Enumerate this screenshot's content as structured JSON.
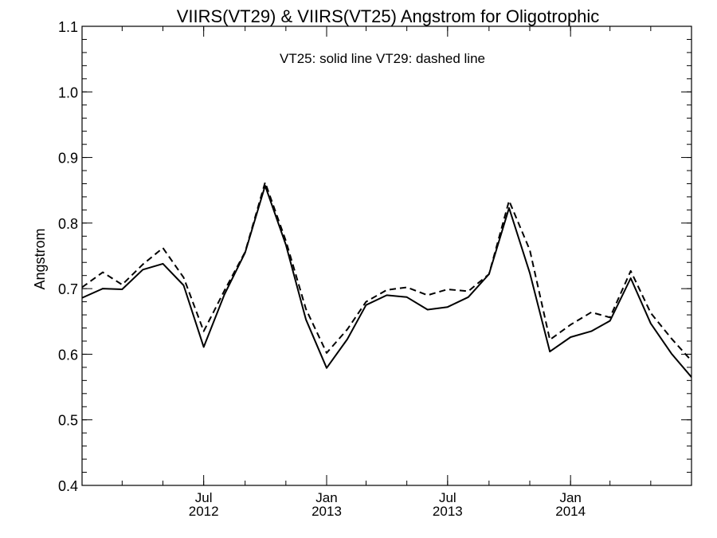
{
  "chart_data": {
    "type": "line",
    "title": "VIIRS(VT29) & VIIRS(VT25)  Angstrom for Oligotrophic",
    "annotation": "VT25: solid line   VT29: dashed line",
    "xlabel": "",
    "ylabel": "Angstrom",
    "ylim": [
      0.4,
      1.1
    ],
    "yticks": [
      "0.4",
      "0.5",
      "0.6",
      "0.7",
      "0.8",
      "0.9",
      "1.0",
      "1.1"
    ],
    "x_ticks": [
      {
        "top": "Jul",
        "bottom": "2012",
        "date": "2012-07"
      },
      {
        "top": "Jan",
        "bottom": "2013",
        "date": "2013-01"
      },
      {
        "top": "Jul",
        "bottom": "2013",
        "date": "2013-07"
      },
      {
        "top": "Jan",
        "bottom": "2014",
        "date": "2014-01"
      }
    ],
    "xlim": [
      "2012-01-01",
      "2014-07-01"
    ],
    "grid": false,
    "series": [
      {
        "name": "VT25",
        "style": "solid",
        "x": [
          "2012-01-01",
          "2012-02-01",
          "2012-03-01",
          "2012-04-01",
          "2012-05-01",
          "2012-06-01",
          "2012-07-01",
          "2012-08-01",
          "2012-09-01",
          "2012-10-01",
          "2012-11-01",
          "2012-12-01",
          "2013-01-01",
          "2013-02-01",
          "2013-03-01",
          "2013-04-01",
          "2013-05-01",
          "2013-06-01",
          "2013-07-01",
          "2013-08-01",
          "2013-09-01",
          "2013-10-01",
          "2013-11-01",
          "2013-12-01",
          "2014-01-01",
          "2014-02-01",
          "2014-03-01",
          "2014-04-01",
          "2014-05-01",
          "2014-06-01",
          "2014-07-01"
        ],
        "values": [
          0.686,
          0.7,
          0.699,
          0.729,
          0.738,
          0.705,
          0.611,
          0.691,
          0.755,
          0.857,
          0.767,
          0.653,
          0.579,
          0.623,
          0.675,
          0.69,
          0.687,
          0.668,
          0.672,
          0.687,
          0.722,
          0.823,
          0.724,
          0.604,
          0.626,
          0.635,
          0.651,
          0.716,
          0.647,
          0.601,
          0.565
        ]
      },
      {
        "name": "VT29",
        "style": "dashed",
        "x": [
          "2012-01-01",
          "2012-02-01",
          "2012-03-01",
          "2012-04-01",
          "2012-05-01",
          "2012-06-01",
          "2012-07-01",
          "2012-08-01",
          "2012-09-01",
          "2012-10-01",
          "2012-11-01",
          "2012-12-01",
          "2013-01-01",
          "2013-02-01",
          "2013-03-01",
          "2013-04-01",
          "2013-05-01",
          "2013-06-01",
          "2013-07-01",
          "2013-08-01",
          "2013-09-01",
          "2013-10-01",
          "2013-11-01",
          "2013-12-01",
          "2014-01-01",
          "2014-02-01",
          "2014-03-01",
          "2014-04-01",
          "2014-05-01",
          "2014-06-01",
          "2014-07-01"
        ],
        "values": [
          0.702,
          0.725,
          0.706,
          0.737,
          0.762,
          0.717,
          0.635,
          0.697,
          0.756,
          0.862,
          0.773,
          0.669,
          0.602,
          0.638,
          0.68,
          0.698,
          0.702,
          0.69,
          0.699,
          0.696,
          0.722,
          0.834,
          0.759,
          0.622,
          0.645,
          0.664,
          0.656,
          0.727,
          0.663,
          0.624,
          0.59
        ]
      }
    ]
  }
}
